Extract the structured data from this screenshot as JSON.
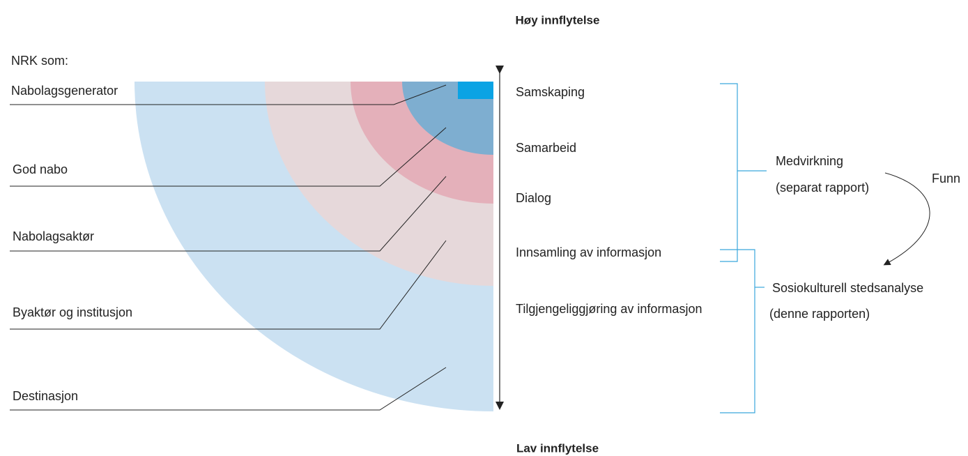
{
  "header": {
    "top": "Høy innflytelse",
    "bottom": "Lav innflytelse"
  },
  "left": {
    "title": "NRK som:",
    "labels": [
      "Nabolagsgenerator",
      "God nabo",
      "Nabolagsaktør",
      "Byaktør og institusjon",
      "Destinasjon"
    ]
  },
  "scale": {
    "labels": [
      "Samskaping",
      "Samarbeid",
      "Dialog",
      "Innsamling av informasjon",
      "Tilgjengeliggjøring av informasjon"
    ]
  },
  "right": {
    "groups": [
      {
        "title": "Medvirkning",
        "subtitle": "(separat rapport)"
      },
      {
        "title": "Sosiokulturell stedsanalyse",
        "subtitle": "(denne rapporten)"
      }
    ],
    "arrow_label": "Funn"
  }
}
